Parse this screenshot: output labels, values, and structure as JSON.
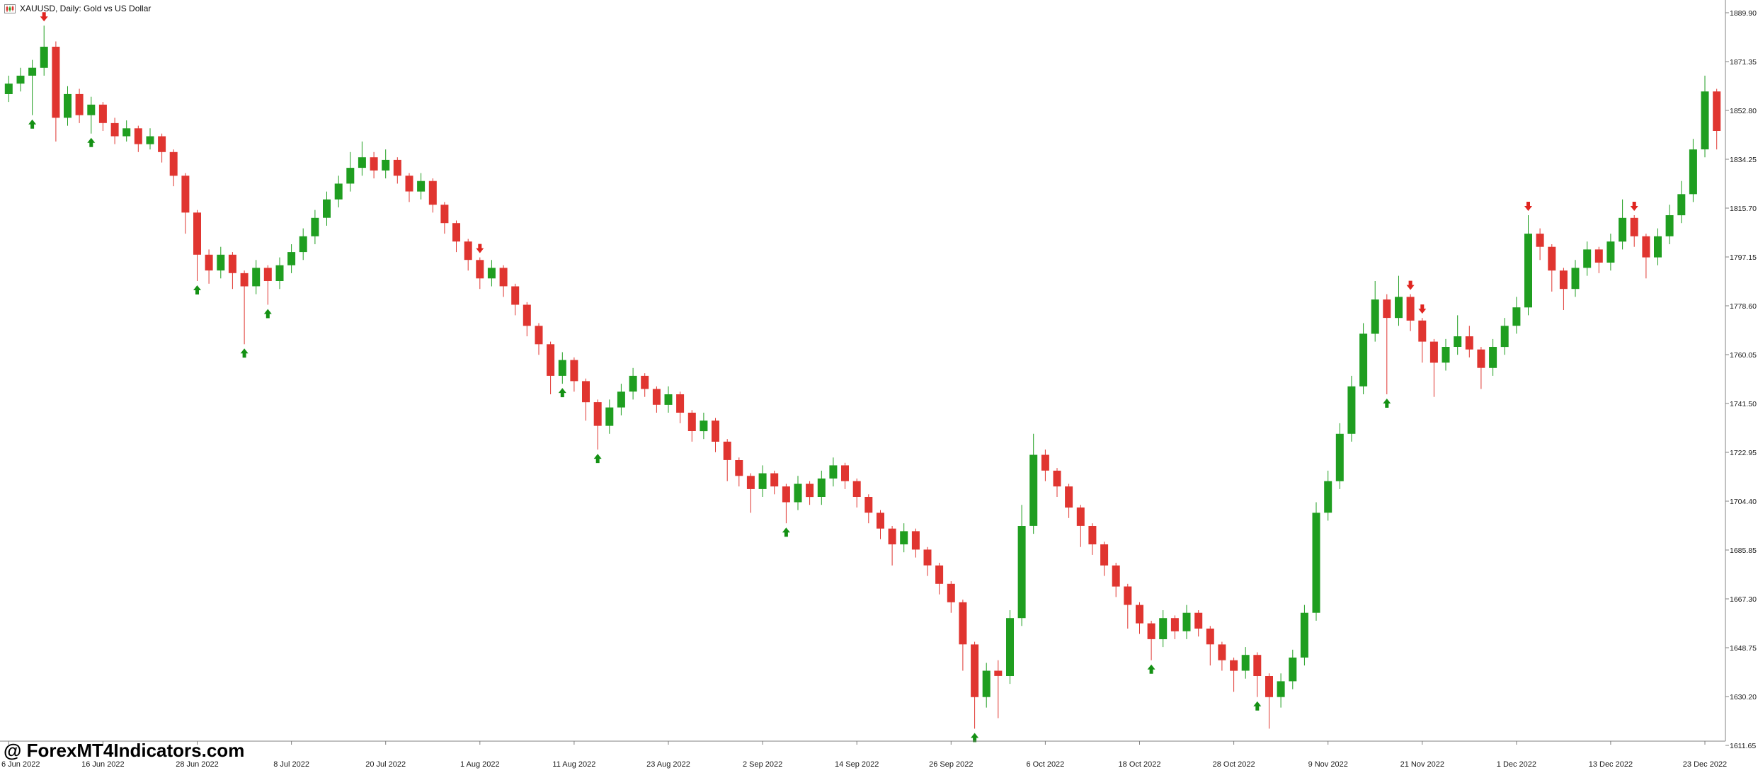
{
  "header": {
    "title": "XAUUSD, Daily:  Gold vs US Dollar",
    "icon": "candlestick-chart-icon"
  },
  "watermark": "@ ForexMT4Indicators.com",
  "colors": {
    "bull": "#1f9e20",
    "bear": "#e03530",
    "buy_arrow": "#149114",
    "sell_arrow": "#e02520",
    "axis_line": "#808080",
    "axis_text": "#1a1a1a",
    "title_text": "#101010"
  },
  "chart_data": {
    "type": "candlestick",
    "symbol": "XAUUSD",
    "timeframe": "Daily",
    "description": "Gold vs US Dollar",
    "grid": false,
    "legend": false,
    "price_axis": {
      "max": 1889.9,
      "min": 1611.65,
      "labels": [
        "1889.90",
        "1871.35",
        "1852.80",
        "1834.25",
        "1815.70",
        "1797.15",
        "1778.60",
        "1760.05",
        "1741.50",
        "1722.95",
        "1704.40",
        "1685.85",
        "1667.30",
        "1648.75",
        "1630.20",
        "1611.65"
      ]
    },
    "time_axis": {
      "candles_per_label": 8,
      "labels": [
        "6 Jun 2022",
        "16 Jun 2022",
        "28 Jun 2022",
        "8 Jul 2022",
        "20 Jul 2022",
        "1 Aug 2022",
        "11 Aug 2022",
        "23 Aug 2022",
        "2 Sep 2022",
        "14 Sep 2022",
        "26 Sep 2022",
        "6 Oct 2022",
        "18 Oct 2022",
        "28 Oct 2022",
        "9 Nov 2022",
        "21 Nov 2022",
        "1 Dec 2022",
        "13 Dec 2022",
        "23 Dec 2022"
      ]
    },
    "candles": [
      [
        1859,
        1866,
        1856,
        1863
      ],
      [
        1863,
        1869,
        1860,
        1866
      ],
      [
        1866,
        1872,
        1851,
        1869
      ],
      [
        1869,
        1885,
        1866,
        1877
      ],
      [
        1877,
        1879,
        1841,
        1850
      ],
      [
        1850,
        1862,
        1847,
        1859
      ],
      [
        1859,
        1861,
        1848,
        1851
      ],
      [
        1851,
        1858,
        1844,
        1855
      ],
      [
        1855,
        1856,
        1845,
        1848
      ],
      [
        1848,
        1850,
        1840,
        1843
      ],
      [
        1843,
        1849,
        1841,
        1846
      ],
      [
        1846,
        1847,
        1837,
        1840
      ],
      [
        1840,
        1846,
        1838,
        1843
      ],
      [
        1843,
        1844,
        1833,
        1837
      ],
      [
        1837,
        1838,
        1824,
        1828
      ],
      [
        1828,
        1829,
        1806,
        1814
      ],
      [
        1814,
        1815,
        1788,
        1798
      ],
      [
        1798,
        1800,
        1787,
        1792
      ],
      [
        1792,
        1801,
        1789,
        1798
      ],
      [
        1798,
        1799,
        1785,
        1791
      ],
      [
        1791,
        1792,
        1764,
        1786
      ],
      [
        1786,
        1796,
        1783,
        1793
      ],
      [
        1793,
        1794,
        1779,
        1788
      ],
      [
        1788,
        1797,
        1785,
        1794
      ],
      [
        1794,
        1802,
        1791,
        1799
      ],
      [
        1799,
        1808,
        1796,
        1805
      ],
      [
        1805,
        1815,
        1802,
        1812
      ],
      [
        1812,
        1822,
        1809,
        1819
      ],
      [
        1819,
        1828,
        1816,
        1825
      ],
      [
        1825,
        1837,
        1822,
        1831
      ],
      [
        1831,
        1841,
        1828,
        1835
      ],
      [
        1835,
        1837,
        1827,
        1830
      ],
      [
        1830,
        1838,
        1827,
        1834
      ],
      [
        1834,
        1835,
        1825,
        1828
      ],
      [
        1828,
        1829,
        1818,
        1822
      ],
      [
        1822,
        1829,
        1819,
        1826
      ],
      [
        1826,
        1827,
        1814,
        1817
      ],
      [
        1817,
        1818,
        1806,
        1810
      ],
      [
        1810,
        1811,
        1799,
        1803
      ],
      [
        1803,
        1804,
        1792,
        1796
      ],
      [
        1796,
        1797,
        1785,
        1789
      ],
      [
        1789,
        1796,
        1786,
        1793
      ],
      [
        1793,
        1794,
        1782,
        1786
      ],
      [
        1786,
        1787,
        1775,
        1779
      ],
      [
        1779,
        1780,
        1767,
        1771
      ],
      [
        1771,
        1772,
        1760,
        1764
      ],
      [
        1764,
        1765,
        1745,
        1752
      ],
      [
        1752,
        1761,
        1749,
        1758
      ],
      [
        1758,
        1759,
        1746,
        1750
      ],
      [
        1750,
        1751,
        1735,
        1742
      ],
      [
        1742,
        1743,
        1724,
        1733
      ],
      [
        1733,
        1743,
        1730,
        1740
      ],
      [
        1740,
        1749,
        1737,
        1746
      ],
      [
        1746,
        1755,
        1743,
        1752
      ],
      [
        1752,
        1753,
        1744,
        1747
      ],
      [
        1747,
        1748,
        1738,
        1741
      ],
      [
        1741,
        1748,
        1738,
        1745
      ],
      [
        1745,
        1746,
        1734,
        1738
      ],
      [
        1738,
        1739,
        1727,
        1731
      ],
      [
        1731,
        1738,
        1728,
        1735
      ],
      [
        1735,
        1736,
        1723,
        1727
      ],
      [
        1727,
        1728,
        1712,
        1720
      ],
      [
        1720,
        1721,
        1710,
        1714
      ],
      [
        1714,
        1715,
        1700,
        1709
      ],
      [
        1709,
        1718,
        1706,
        1715
      ],
      [
        1715,
        1716,
        1707,
        1710
      ],
      [
        1710,
        1711,
        1696,
        1704
      ],
      [
        1704,
        1714,
        1701,
        1711
      ],
      [
        1711,
        1712,
        1703,
        1706
      ],
      [
        1706,
        1716,
        1703,
        1713
      ],
      [
        1713,
        1721,
        1710,
        1718
      ],
      [
        1718,
        1719,
        1709,
        1712
      ],
      [
        1712,
        1713,
        1702,
        1706
      ],
      [
        1706,
        1707,
        1696,
        1700
      ],
      [
        1700,
        1701,
        1690,
        1694
      ],
      [
        1694,
        1695,
        1680,
        1688
      ],
      [
        1688,
        1696,
        1685,
        1693
      ],
      [
        1693,
        1694,
        1683,
        1686
      ],
      [
        1686,
        1687,
        1676,
        1680
      ],
      [
        1680,
        1681,
        1669,
        1673
      ],
      [
        1673,
        1674,
        1662,
        1666
      ],
      [
        1666,
        1667,
        1640,
        1650
      ],
      [
        1650,
        1651,
        1618,
        1630
      ],
      [
        1630,
        1643,
        1626,
        1640
      ],
      [
        1640,
        1644,
        1622,
        1638
      ],
      [
        1638,
        1663,
        1635,
        1660
      ],
      [
        1660,
        1703,
        1657,
        1695
      ],
      [
        1695,
        1730,
        1692,
        1722
      ],
      [
        1722,
        1724,
        1712,
        1716
      ],
      [
        1716,
        1717,
        1706,
        1710
      ],
      [
        1710,
        1711,
        1698,
        1702
      ],
      [
        1702,
        1703,
        1687,
        1695
      ],
      [
        1695,
        1696,
        1684,
        1688
      ],
      [
        1688,
        1689,
        1676,
        1680
      ],
      [
        1680,
        1681,
        1668,
        1672
      ],
      [
        1672,
        1673,
        1656,
        1665
      ],
      [
        1665,
        1666,
        1654,
        1658
      ],
      [
        1658,
        1659,
        1644,
        1652
      ],
      [
        1652,
        1663,
        1649,
        1660
      ],
      [
        1660,
        1661,
        1652,
        1655
      ],
      [
        1655,
        1665,
        1652,
        1662
      ],
      [
        1662,
        1663,
        1653,
        1656
      ],
      [
        1656,
        1657,
        1642,
        1650
      ],
      [
        1650,
        1651,
        1640,
        1644
      ],
      [
        1644,
        1645,
        1632,
        1640
      ],
      [
        1640,
        1649,
        1637,
        1646
      ],
      [
        1646,
        1647,
        1630,
        1638
      ],
      [
        1638,
        1639,
        1618,
        1630
      ],
      [
        1630,
        1639,
        1626,
        1636
      ],
      [
        1636,
        1648,
        1633,
        1645
      ],
      [
        1645,
        1665,
        1642,
        1662
      ],
      [
        1662,
        1704,
        1659,
        1700
      ],
      [
        1700,
        1716,
        1697,
        1712
      ],
      [
        1712,
        1734,
        1709,
        1730
      ],
      [
        1730,
        1752,
        1727,
        1748
      ],
      [
        1748,
        1772,
        1745,
        1768
      ],
      [
        1768,
        1788,
        1765,
        1781
      ],
      [
        1781,
        1783,
        1745,
        1774
      ],
      [
        1774,
        1790,
        1771,
        1782
      ],
      [
        1782,
        1783,
        1769,
        1773
      ],
      [
        1773,
        1774,
        1757,
        1765
      ],
      [
        1765,
        1766,
        1744,
        1757
      ],
      [
        1757,
        1766,
        1754,
        1763
      ],
      [
        1763,
        1775,
        1760,
        1767
      ],
      [
        1767,
        1771,
        1759,
        1762
      ],
      [
        1762,
        1763,
        1747,
        1755
      ],
      [
        1755,
        1766,
        1752,
        1763
      ],
      [
        1763,
        1774,
        1760,
        1771
      ],
      [
        1771,
        1782,
        1768,
        1778
      ],
      [
        1778,
        1813,
        1775,
        1806
      ],
      [
        1806,
        1808,
        1796,
        1801
      ],
      [
        1801,
        1802,
        1784,
        1792
      ],
      [
        1792,
        1793,
        1777,
        1785
      ],
      [
        1785,
        1796,
        1782,
        1793
      ],
      [
        1793,
        1803,
        1790,
        1800
      ],
      [
        1800,
        1801,
        1791,
        1795
      ],
      [
        1795,
        1806,
        1792,
        1803
      ],
      [
        1803,
        1819,
        1800,
        1812
      ],
      [
        1812,
        1813,
        1801,
        1805
      ],
      [
        1805,
        1806,
        1789,
        1797
      ],
      [
        1797,
        1808,
        1794,
        1805
      ],
      [
        1805,
        1817,
        1802,
        1813
      ],
      [
        1813,
        1826,
        1810,
        1821
      ],
      [
        1821,
        1842,
        1818,
        1838
      ],
      [
        1838,
        1866,
        1835,
        1860
      ],
      [
        1860,
        1861,
        1838,
        1845
      ]
    ],
    "signals": {
      "buy": [
        2,
        7,
        16,
        20,
        22,
        47,
        50,
        66,
        82,
        97,
        106,
        117
      ],
      "sell": [
        3,
        40,
        119,
        120,
        129,
        138
      ]
    }
  }
}
